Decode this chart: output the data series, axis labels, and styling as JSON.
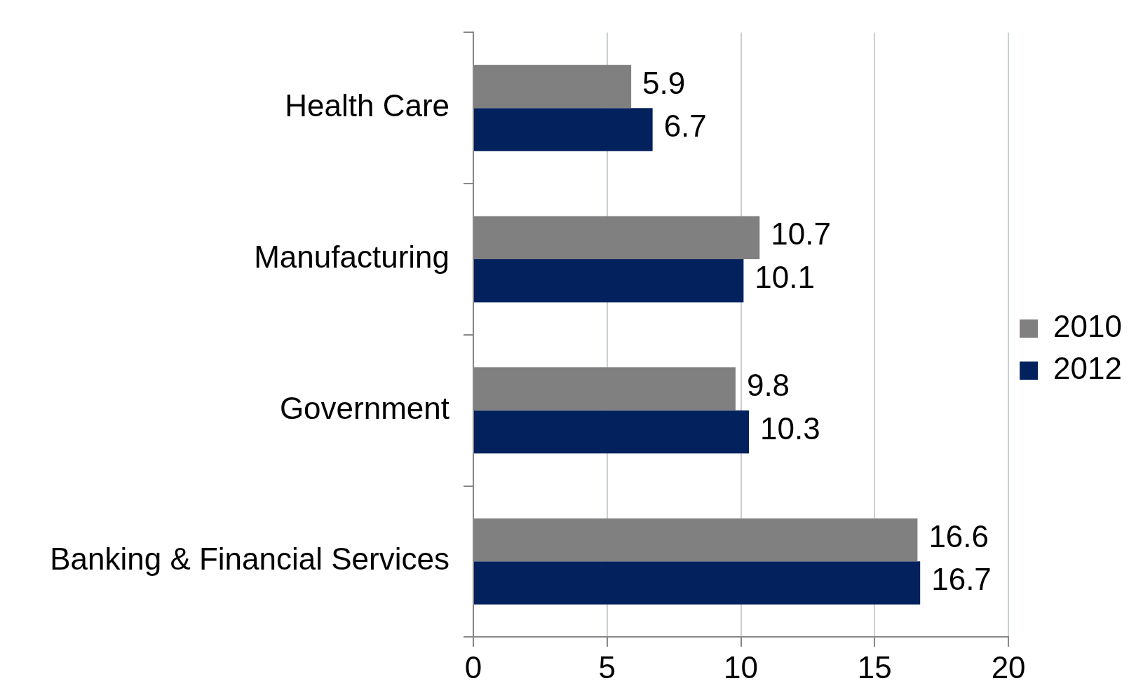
{
  "chart_data": {
    "type": "bar",
    "orientation": "horizontal",
    "categories": [
      "Health Care",
      "Manufacturing",
      "Government",
      "Banking & Financial Services"
    ],
    "series": [
      {
        "name": "2010",
        "color": "#808080",
        "values": [
          5.9,
          10.7,
          9.8,
          16.6
        ]
      },
      {
        "name": "2012",
        "color": "#03215d",
        "values": [
          6.7,
          10.1,
          10.3,
          16.7
        ]
      }
    ],
    "xlim": [
      0,
      20
    ],
    "xticks": [
      0,
      5,
      10,
      15,
      20
    ],
    "grid": "x",
    "legend": "right",
    "data_labels": true
  }
}
